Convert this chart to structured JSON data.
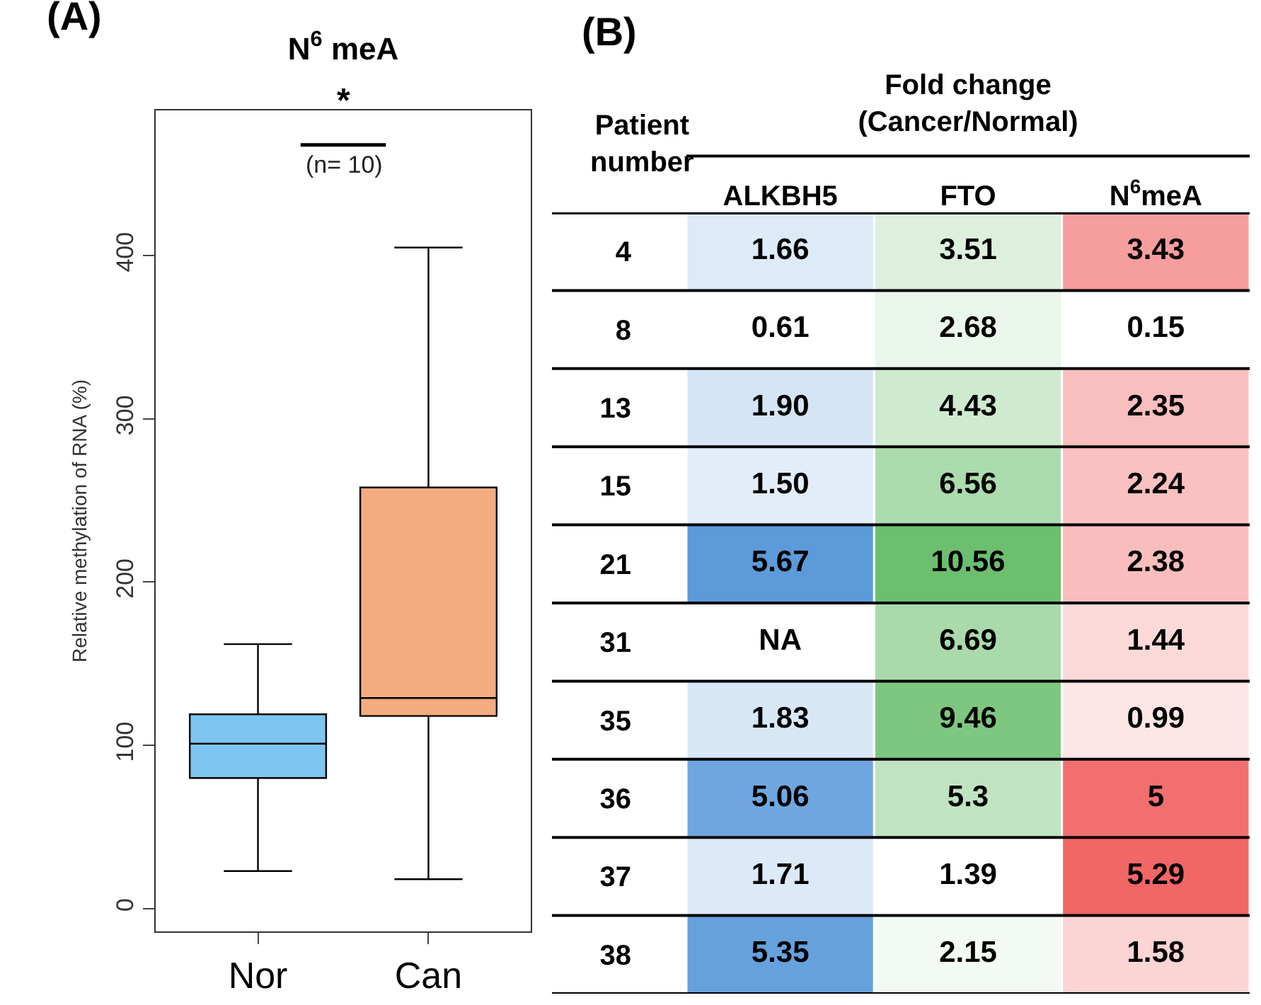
{
  "chart_data": [
    {
      "type": "box",
      "title": "N$^{6}$ meA",
      "ylabel": "Relative methylation of RNA (%)",
      "categories": [
        "Nor",
        "Can"
      ],
      "colors": [
        "#7dc5f0",
        "#f4ab80"
      ],
      "boxes": [
        {
          "low": 23,
          "q1": 80,
          "median": 101,
          "q3": 119,
          "high": 162
        },
        {
          "low": 18,
          "q1": 118,
          "median": 129,
          "q3": 258,
          "high": 405
        }
      ],
      "ylim": [
        -14,
        489
      ],
      "yticks": [
        0,
        100,
        200,
        300,
        400
      ],
      "annotations": [
        "(A)",
        "*",
        "(n= 10)"
      ]
    },
    {
      "type": "heatmap",
      "title": "Fold change (Cancer/Normal)",
      "ylabel": "Patient number",
      "categories": [
        "ALKBH5",
        "FTO",
        "N$^{6}$meA"
      ],
      "y_categories": [
        "4",
        "8",
        "13",
        "15",
        "21",
        "31",
        "35",
        "36",
        "37",
        "38"
      ],
      "colors": [
        "#4a8fd6",
        "#5cb85f",
        "#f05555"
      ],
      "cells": [
        [
          1.66,
          3.51,
          3.43
        ],
        [
          0.61,
          2.68,
          0.15
        ],
        [
          1.9,
          4.43,
          2.35
        ],
        [
          1.5,
          6.56,
          2.24
        ],
        [
          5.67,
          10.56,
          2.38
        ],
        [
          null,
          6.69,
          1.44
        ],
        [
          1.83,
          9.46,
          0.99
        ],
        [
          5.06,
          5.3,
          5
        ],
        [
          1.71,
          1.39,
          5.29
        ],
        [
          5.35,
          2.15,
          1.58
        ]
      ],
      "cell_labels": [
        [
          "1.66",
          "3.51",
          "3.43"
        ],
        [
          "0.61",
          "2.68",
          "0.15"
        ],
        [
          "1.90",
          "4.43",
          "2.35"
        ],
        [
          "1.50",
          "6.56",
          "2.24"
        ],
        [
          "5.67",
          "10.56",
          "2.38"
        ],
        [
          "NA",
          "6.69",
          "1.44"
        ],
        [
          "1.83",
          "9.46",
          "0.99"
        ],
        [
          "5.06",
          "5.3",
          "5"
        ],
        [
          "1.71",
          "1.39",
          "5.29"
        ],
        [
          "5.35",
          "2.15",
          "1.58"
        ]
      ],
      "annotations": [
        "(B)"
      ]
    }
  ]
}
